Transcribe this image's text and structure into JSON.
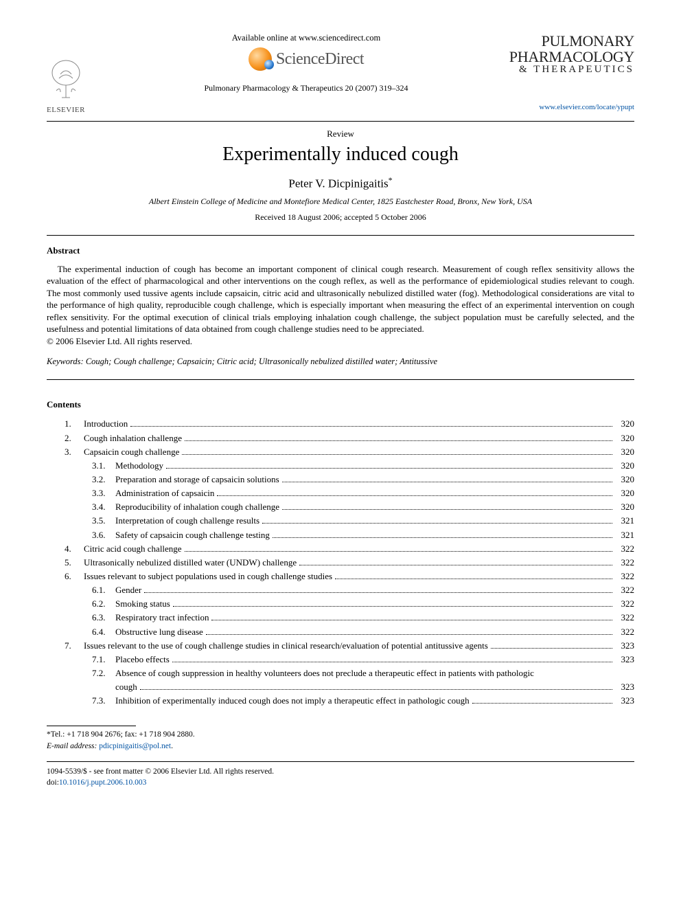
{
  "header": {
    "available_line": "Available online at www.sciencedirect.com",
    "sd_brand": "ScienceDirect",
    "publisher": "ELSEVIER",
    "citation": "Pulmonary Pharmacology & Therapeutics 20 (2007) 319–324",
    "journal_title_l1": "PULMONARY",
    "journal_title_l2": "PHARMACOLOGY",
    "journal_title_l3": "& THERAPEUTICS",
    "journal_url": "www.elsevier.com/locate/ypupt"
  },
  "article": {
    "type": "Review",
    "title": "Experimentally induced cough",
    "author": "Peter V. Dicpinigaitis",
    "corr_mark": "*",
    "affiliation": "Albert Einstein College of Medicine and Montefiore Medical Center, 1825 Eastchester Road, Bronx, New York, USA",
    "dates": "Received 18 August 2006; accepted 5 October 2006"
  },
  "abstract": {
    "heading": "Abstract",
    "body": "The experimental induction of cough has become an important component of clinical cough research. Measurement of cough reflex sensitivity allows the evaluation of the effect of pharmacological and other interventions on the cough reflex, as well as the performance of epidemiological studies relevant to cough. The most commonly used tussive agents include capsaicin, citric acid and ultrasonically nebulized distilled water (fog). Methodological considerations are vital to the performance of high quality, reproducible cough challenge, which is especially important when measuring the effect of an experimental intervention on cough reflex sensitivity. For the optimal execution of clinical trials employing inhalation cough challenge, the subject population must be carefully selected, and the usefulness and potential limitations of data obtained from cough challenge studies need to be appreciated.",
    "copyright": "© 2006 Elsevier Ltd. All rights reserved."
  },
  "keywords": {
    "label": "Keywords:",
    "text": "Cough; Cough challenge; Capsaicin; Citric acid; Ultrasonically nebulized distilled water; Antitussive"
  },
  "contents": {
    "heading": "Contents",
    "items": [
      {
        "num": "1.",
        "level": 1,
        "title": "Introduction",
        "page": "320"
      },
      {
        "num": "2.",
        "level": 1,
        "title": "Cough inhalation challenge",
        "page": "320"
      },
      {
        "num": "3.",
        "level": 1,
        "title": "Capsaicin cough challenge",
        "page": "320"
      },
      {
        "num": "3.1.",
        "level": 2,
        "title": "Methodology",
        "page": "320"
      },
      {
        "num": "3.2.",
        "level": 2,
        "title": "Preparation and storage of capsaicin solutions",
        "page": "320"
      },
      {
        "num": "3.3.",
        "level": 2,
        "title": "Administration of capsaicin",
        "page": "320"
      },
      {
        "num": "3.4.",
        "level": 2,
        "title": "Reproducibility of inhalation cough challenge",
        "page": "320"
      },
      {
        "num": "3.5.",
        "level": 2,
        "title": "Interpretation of cough challenge results",
        "page": "321"
      },
      {
        "num": "3.6.",
        "level": 2,
        "title": "Safety of capsaicin cough challenge testing",
        "page": "321"
      },
      {
        "num": "4.",
        "level": 1,
        "title": "Citric acid cough challenge",
        "page": "322"
      },
      {
        "num": "5.",
        "level": 1,
        "title": "Ultrasonically nebulized distilled water (UNDW) challenge",
        "page": "322"
      },
      {
        "num": "6.",
        "level": 1,
        "title": "Issues relevant to subject populations used in cough challenge studies",
        "page": "322"
      },
      {
        "num": "6.1.",
        "level": 2,
        "title": "Gender",
        "page": "322"
      },
      {
        "num": "6.2.",
        "level": 2,
        "title": "Smoking status",
        "page": "322"
      },
      {
        "num": "6.3.",
        "level": 2,
        "title": "Respiratory tract infection",
        "page": "322"
      },
      {
        "num": "6.4.",
        "level": 2,
        "title": "Obstructive lung disease",
        "page": "322"
      },
      {
        "num": "7.",
        "level": 1,
        "title": "Issues relevant to the use of cough challenge studies in clinical research/evaluation of potential antitussive agents",
        "page": "323"
      },
      {
        "num": "7.1.",
        "level": 2,
        "title": "Placebo effects",
        "page": "323"
      },
      {
        "num": "7.2.",
        "level": 2,
        "title_l1": "Absence of cough suppression in healthy volunteers does not preclude a therapeutic effect in patients with pathologic",
        "title_l2": "cough",
        "page": "323",
        "multiline": true
      },
      {
        "num": "7.3.",
        "level": 2,
        "title": "Inhibition of experimentally induced cough does not imply a therapeutic effect in pathologic cough",
        "page": "323"
      }
    ]
  },
  "footnote": {
    "corr": "*Tel.: +1 718 904 2676; fax: +1 718 904 2880.",
    "email_label": "E-mail address:",
    "email": "pdicpinigaitis@pol.net",
    "email_suffix": "."
  },
  "footer": {
    "issn_line": "1094-5539/$ - see front matter © 2006 Elsevier Ltd. All rights reserved.",
    "doi_label": "doi:",
    "doi": "10.1016/j.pupt.2006.10.003"
  },
  "colors": {
    "text": "#000000",
    "link": "#0052a3",
    "background": "#ffffff"
  },
  "typography": {
    "body_font": "Times New Roman",
    "body_size_pt": 10,
    "title_size_pt": 21,
    "author_size_pt": 13
  }
}
